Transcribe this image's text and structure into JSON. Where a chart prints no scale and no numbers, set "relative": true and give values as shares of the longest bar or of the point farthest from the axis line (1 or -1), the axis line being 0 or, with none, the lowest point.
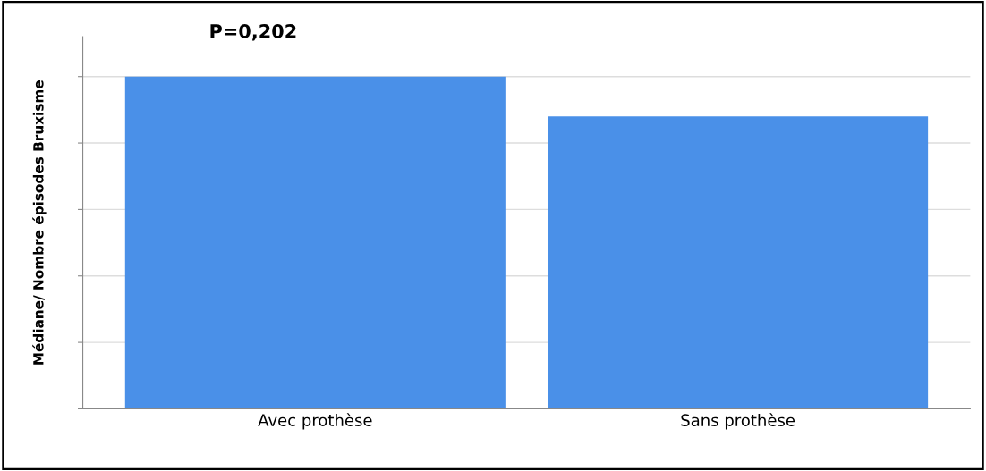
{
  "chart_data": {
    "type": "bar",
    "relative": true,
    "ylabel": "Médiane/ Nombre épisodes Bruxisme",
    "categories": [
      "Avec prothèse",
      "Sans prothèse"
    ],
    "values": [
      1,
      0.88
    ],
    "color": "#4a90e8",
    "grid": "y",
    "annotations": [
      {
        "text": "P=0,202",
        "x": "Avec prothèse",
        "y": 1
      }
    ]
  }
}
